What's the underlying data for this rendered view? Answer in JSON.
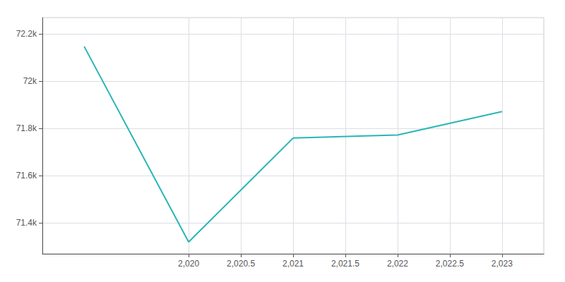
{
  "chart_data": {
    "type": "line",
    "x": [
      2019,
      2020,
      2021,
      2022,
      2023
    ],
    "values": [
      72148,
      71320,
      71760,
      71773,
      71872
    ],
    "color": "#2ab5b5",
    "xlim": [
      2018.6,
      2023.4
    ],
    "ylim": [
      71270,
      72270
    ],
    "xticks": [
      {
        "value": 2020,
        "label": "2,020"
      },
      {
        "value": 2020.5,
        "label": "2,020.5"
      },
      {
        "value": 2021,
        "label": "2,021"
      },
      {
        "value": 2021.5,
        "label": "2,021.5"
      },
      {
        "value": 2022,
        "label": "2,022"
      },
      {
        "value": 2022.5,
        "label": "2,022.5"
      },
      {
        "value": 2023,
        "label": "2,023"
      }
    ],
    "yticks": [
      {
        "value": 71400,
        "label": "71.4k"
      },
      {
        "value": 71600,
        "label": "71.6k"
      },
      {
        "value": 71800,
        "label": "71.8k"
      },
      {
        "value": 72000,
        "label": "72k"
      },
      {
        "value": 72200,
        "label": "72.2k"
      }
    ],
    "grid": true
  }
}
